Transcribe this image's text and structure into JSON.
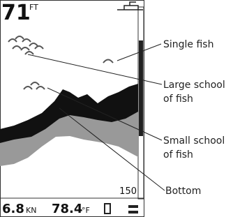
{
  "screen": {
    "depth": "71",
    "depth_unit": "FT",
    "range": "150",
    "speed": "6.8",
    "speed_unit": "KN",
    "temperature": "78.4",
    "temperature_unit": "°F"
  },
  "callouts": [
    {
      "lines": [
        "Single fish"
      ]
    },
    {
      "lines": [
        "Large school",
        "of fish"
      ]
    },
    {
      "lines": [
        "Small school",
        "of fish"
      ]
    },
    {
      "lines": [
        "Bottom"
      ]
    }
  ]
}
